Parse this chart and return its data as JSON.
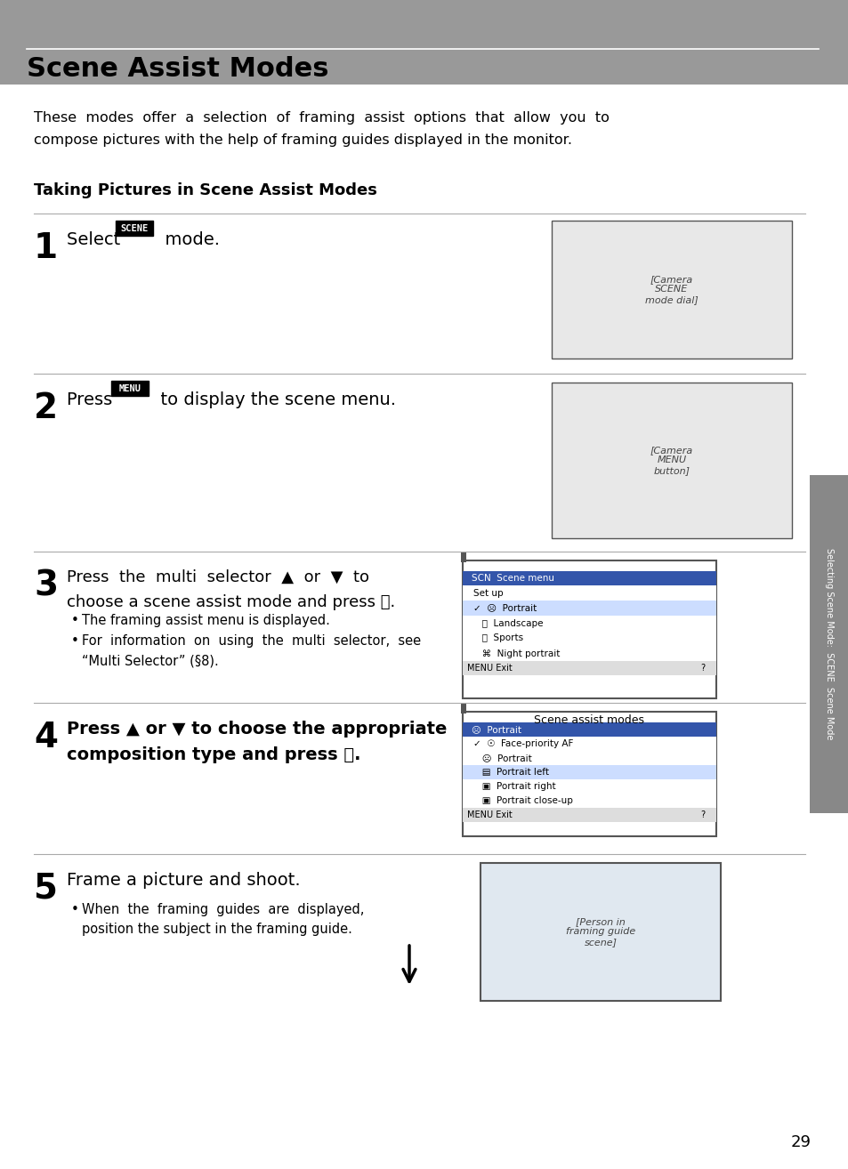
{
  "page_bg": "#ffffff",
  "header_bg": "#999999",
  "header_text": "Scene Assist Modes",
  "header_text_color": "#000000",
  "header_line_color": "#ffffff",
  "body_text_color": "#000000",
  "intro_text": "These  modes  offer  a  selection  of  framing  assist  options  that  allow  you  to\ncompose pictures with the help of framing guides displayed in the monitor.",
  "subtitle": "Taking Pictures in Scene Assist Modes",
  "steps": [
    {
      "num": "1",
      "text": "Select  SCENE  mode.",
      "has_scene_badge": true
    },
    {
      "num": "2",
      "text": "Press  MENU  to display the scene menu.",
      "has_menu_badge": true
    },
    {
      "num": "3",
      "text": "Press  the  multi  selector  ▲  or  ▼  to\nchoose a scene assist mode and press ⒪.",
      "bullets": [
        "The framing assist menu is displayed.",
        "For  information  on  using  the  multi  selector,  see\n“Multi Selector” (§8)."
      ]
    },
    {
      "num": "4",
      "text": "Press ▲ or ▼ to choose the appropriate\ncomposition type and press ⒪.",
      "bold_text": true
    },
    {
      "num": "5",
      "text": "Frame a picture and shoot.",
      "bullets": [
        "When  the  framing  guides  are  displayed,\nposition the subject in the framing guide."
      ]
    }
  ],
  "sidebar_text": "Selecting Scene Mode: SCENE Scene Mode",
  "page_number": "29",
  "scene_assist_label": "Scene assist modes"
}
